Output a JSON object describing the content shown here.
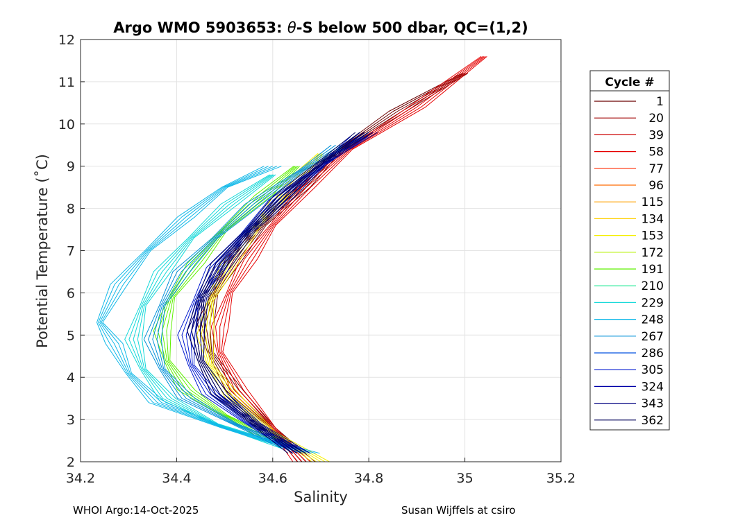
{
  "chart_data": {
    "type": "line",
    "title_prefix": "Argo WMO 5903653: ",
    "title_theta": "θ",
    "title_suffix": "-S below 500 dbar,  QC=(1,2)",
    "xlabel": "Salinity",
    "ylabel": "Potential Temperature (˚C)",
    "xlim": [
      34.2,
      35.2
    ],
    "ylim": [
      2,
      12
    ],
    "xticks": [
      34.2,
      34.4,
      34.6,
      34.8,
      35,
      35.2
    ],
    "xtick_labels": [
      "34.2",
      "34.4",
      "34.6",
      "34.8",
      "35",
      "35.2"
    ],
    "yticks": [
      2,
      3,
      4,
      5,
      6,
      7,
      8,
      9,
      10,
      11,
      12
    ],
    "ytick_labels": [
      "2",
      "3",
      "4",
      "5",
      "6",
      "7",
      "8",
      "9",
      "10",
      "11",
      "12"
    ],
    "grid": true,
    "legend": {
      "title": "Cycle #",
      "placement": "right",
      "entries": [
        {
          "label": "1",
          "color": "#6b0000"
        },
        {
          "label": "20",
          "color": "#a00000"
        },
        {
          "label": "39",
          "color": "#cc0000"
        },
        {
          "label": "58",
          "color": "#e60000"
        },
        {
          "label": "77",
          "color": "#ff2a00"
        },
        {
          "label": "96",
          "color": "#ff6a00"
        },
        {
          "label": "115",
          "color": "#ffa000"
        },
        {
          "label": "134",
          "color": "#ffd000"
        },
        {
          "label": "153",
          "color": "#f5ef00"
        },
        {
          "label": "172",
          "color": "#b5f000"
        },
        {
          "label": "191",
          "color": "#5ef000"
        },
        {
          "label": "210",
          "color": "#18e890"
        },
        {
          "label": "229",
          "color": "#10d8d8"
        },
        {
          "label": "248",
          "color": "#10b8e8"
        },
        {
          "label": "267",
          "color": "#0090d8"
        },
        {
          "label": "286",
          "color": "#0050e0"
        },
        {
          "label": "305",
          "color": "#0018d0"
        },
        {
          "label": "324",
          "color": "#0000a8"
        },
        {
          "label": "343",
          "color": "#000080"
        },
        {
          "label": "362",
          "color": "#00005a"
        }
      ]
    },
    "series": [
      {
        "name": "cycle 1",
        "color": "#6b0000",
        "s": [
          34.67,
          34.6,
          34.52,
          34.47,
          34.46,
          34.48,
          34.52,
          34.58,
          34.66,
          34.74,
          34.86,
          35.0
        ],
        "t": [
          2.0,
          2.8,
          3.7,
          4.6,
          5.3,
          6.0,
          6.8,
          7.6,
          8.5,
          9.4,
          10.3,
          11.2
        ]
      },
      {
        "name": "cycle 58",
        "color": "#e60000",
        "s": [
          34.66,
          34.6,
          34.53,
          34.49,
          34.49,
          34.51,
          34.55,
          34.6,
          34.67,
          34.76,
          34.9,
          35.04
        ],
        "t": [
          2.0,
          2.8,
          3.7,
          4.6,
          5.2,
          6.0,
          6.8,
          7.6,
          8.5,
          9.4,
          10.4,
          11.6
        ]
      },
      {
        "name": "cycle 153",
        "color": "#f5ef00",
        "s": [
          34.7,
          34.6,
          34.52,
          34.47,
          34.46,
          34.47,
          34.51,
          34.57,
          34.63,
          34.7
        ],
        "t": [
          2.0,
          2.7,
          3.5,
          4.3,
          5.0,
          5.8,
          6.7,
          7.6,
          8.5,
          9.3
        ]
      },
      {
        "name": "cycle 191",
        "color": "#5ef000",
        "s": [
          34.6,
          34.5,
          34.42,
          34.38,
          34.37,
          34.39,
          34.44,
          34.5,
          34.58,
          34.65
        ],
        "t": [
          2.5,
          3.1,
          3.7,
          4.4,
          5.1,
          5.9,
          6.7,
          7.5,
          8.3,
          9.0
        ]
      },
      {
        "name": "cycle 229",
        "color": "#10d8d8",
        "s": [
          34.64,
          34.48,
          34.38,
          34.33,
          34.31,
          34.33,
          34.37,
          34.43,
          34.51,
          34.6
        ],
        "t": [
          2.3,
          2.9,
          3.5,
          4.2,
          4.9,
          5.7,
          6.5,
          7.3,
          8.1,
          8.8
        ]
      },
      {
        "name": "cycle 248",
        "color": "#10b8e8",
        "s": [
          34.68,
          34.5,
          34.36,
          34.3,
          34.27,
          34.24,
          34.28,
          34.34,
          34.42,
          34.5,
          34.6
        ],
        "t": [
          2.2,
          2.8,
          3.4,
          4.1,
          4.8,
          5.3,
          6.2,
          7.0,
          7.8,
          8.5,
          9.0
        ]
      },
      {
        "name": "cycle 267",
        "color": "#0090d8",
        "s": [
          34.64,
          34.52,
          34.42,
          34.37,
          34.35,
          34.37,
          34.41,
          34.48,
          34.56,
          34.66,
          34.74
        ],
        "t": [
          2.3,
          2.9,
          3.5,
          4.2,
          4.9,
          5.7,
          6.5,
          7.3,
          8.1,
          8.9,
          9.5
        ]
      },
      {
        "name": "cycle 305",
        "color": "#0018d0",
        "s": [
          34.66,
          34.55,
          34.47,
          34.43,
          34.42,
          34.44,
          34.48,
          34.54,
          34.61,
          34.7,
          34.78
        ],
        "t": [
          2.2,
          2.9,
          3.6,
          4.3,
          5.0,
          5.8,
          6.6,
          7.4,
          8.2,
          9.0,
          9.7
        ]
      },
      {
        "name": "cycle 343",
        "color": "#000080",
        "s": [
          34.66,
          34.57,
          34.49,
          34.45,
          34.44,
          34.46,
          34.5,
          34.56,
          34.63,
          34.71,
          34.8
        ],
        "t": [
          2.2,
          2.9,
          3.6,
          4.4,
          5.1,
          5.9,
          6.7,
          7.5,
          8.3,
          9.1,
          9.8
        ]
      },
      {
        "name": "cycle 362",
        "color": "#00005a",
        "s": [
          34.65,
          34.56,
          34.49,
          34.45,
          34.44,
          34.45,
          34.49,
          34.55,
          34.62,
          34.7,
          34.79
        ],
        "t": [
          2.2,
          2.9,
          3.6,
          4.4,
          5.1,
          5.9,
          6.7,
          7.5,
          8.3,
          9.1,
          9.8
        ]
      }
    ]
  },
  "footer": {
    "left": "WHOI Argo:14-Oct-2025",
    "right": "Susan Wijffels at csiro"
  }
}
